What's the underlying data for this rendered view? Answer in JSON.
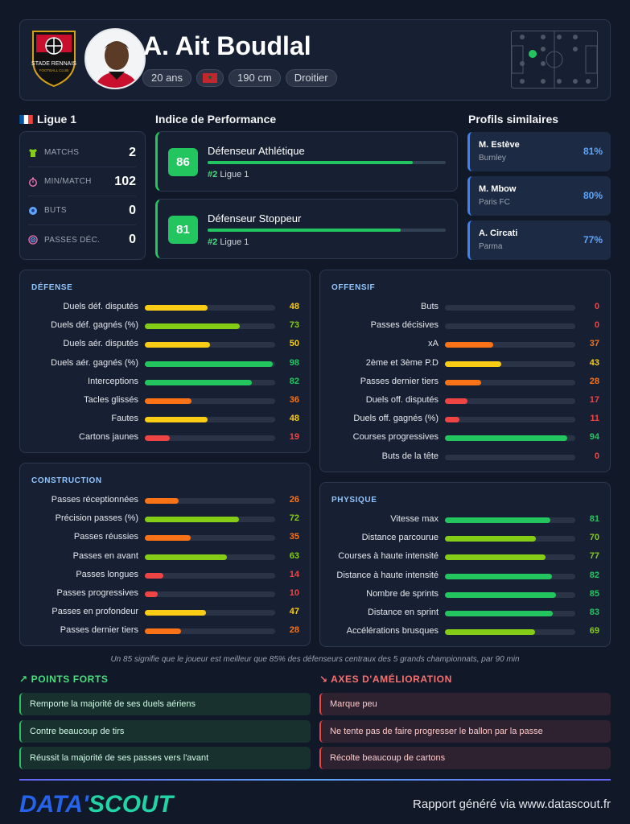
{
  "header": {
    "player_name": "A. Ait Boudlal",
    "logo_text": "STADE RENNAIS",
    "logo_subtext": "FOOTBALL CLUB",
    "chips": {
      "age": "20 ans",
      "height": "190 cm",
      "foot": "Droitier"
    },
    "nationality_flag": "Morocco flag"
  },
  "league": {
    "flag": "France flag",
    "name": "Ligue 1"
  },
  "stats": [
    {
      "icon": "shirt-icon",
      "label": "MATCHS",
      "value": "2"
    },
    {
      "icon": "stopwatch-icon",
      "label": "MIN/MATCH",
      "value": "102"
    },
    {
      "icon": "ball-icon",
      "label": "BUTS",
      "value": "0"
    },
    {
      "icon": "target-icon",
      "label": "PASSES DÉC.",
      "value": "0"
    }
  ],
  "performance": {
    "title": "Indice de Performance",
    "cards": [
      {
        "score": "86",
        "name": "Défenseur Athlétique",
        "rank": "#2",
        "league": "Ligue 1",
        "level": 86
      },
      {
        "score": "81",
        "name": "Défenseur Stoppeur",
        "rank": "#2",
        "league": "Ligue 1",
        "level": 81
      }
    ]
  },
  "similar": {
    "title": "Profils similaires",
    "items": [
      {
        "name": "M. Estève",
        "club": "Burnley",
        "pct": "81%"
      },
      {
        "name": "M. Mbow",
        "club": "Paris FC",
        "pct": "80%"
      },
      {
        "name": "A. Circati",
        "club": "Parma",
        "pct": "77%"
      }
    ]
  },
  "colors": {
    "red": "#ef4444",
    "orange": "#f97316",
    "yellow": "#facc15",
    "lime": "#84cc16",
    "green": "#22c55e"
  },
  "sections": {
    "defense": {
      "title": "DÉFENSE",
      "metrics": [
        {
          "label": "Duels déf. disputés",
          "value": 48
        },
        {
          "label": "Duels déf. gagnés (%)",
          "value": 73
        },
        {
          "label": "Duels aér. disputés",
          "value": 50
        },
        {
          "label": "Duels aér. gagnés (%)",
          "value": 98
        },
        {
          "label": "Interceptions",
          "value": 82
        },
        {
          "label": "Tacles glissés",
          "value": 36
        },
        {
          "label": "Fautes",
          "value": 48
        },
        {
          "label": "Cartons jaunes",
          "value": 19
        }
      ]
    },
    "offensive": {
      "title": "OFFENSIF",
      "metrics": [
        {
          "label": "Buts",
          "value": 0
        },
        {
          "label": "Passes décisives",
          "value": 0
        },
        {
          "label": "xA",
          "value": 37
        },
        {
          "label": "2ème et 3ème P.D",
          "value": 43
        },
        {
          "label": "Passes dernier tiers",
          "value": 28
        },
        {
          "label": "Duels off. disputés",
          "value": 17
        },
        {
          "label": "Duels off. gagnés (%)",
          "value": 11
        },
        {
          "label": "Courses progressives",
          "value": 94
        },
        {
          "label": "Buts de la tête",
          "value": 0
        }
      ]
    },
    "construction": {
      "title": "CONSTRUCTION",
      "metrics": [
        {
          "label": "Passes réceptionnées",
          "value": 26
        },
        {
          "label": "Précision passes (%)",
          "value": 72
        },
        {
          "label": "Passes réussies",
          "value": 35
        },
        {
          "label": "Passes en avant",
          "value": 63
        },
        {
          "label": "Passes longues",
          "value": 14
        },
        {
          "label": "Passes progressives",
          "value": 10
        },
        {
          "label": "Passes en profondeur",
          "value": 47
        },
        {
          "label": "Passes dernier tiers",
          "value": 28
        }
      ]
    },
    "physique": {
      "title": "PHYSIQUE",
      "metrics": [
        {
          "label": "Vitesse max",
          "value": 81
        },
        {
          "label": "Distance parcourue",
          "value": 70
        },
        {
          "label": "Courses à haute intensité",
          "value": 77
        },
        {
          "label": "Distance à haute intensité",
          "value": 82
        },
        {
          "label": "Nombre de sprints",
          "value": 85
        },
        {
          "label": "Distance en sprint",
          "value": 83
        },
        {
          "label": "Accélérations brusques",
          "value": 69
        }
      ]
    }
  },
  "footnote": "Un 85 signifie que le joueur est meilleur que 85% des défenseurs centraux des 5 grands championnats, par 90 min",
  "strengths": {
    "title": "POINTS FORTS",
    "items": [
      "Remporte la majorité de ses duels aériens",
      "Contre beaucoup de tirs",
      "Réussit la majorité de ses passes vers l'avant"
    ]
  },
  "weaknesses": {
    "title": "AXES D'AMÉLIORATION",
    "items": [
      "Marque peu",
      "Ne tente pas de faire progresser le ballon par la passe",
      "Récolte beaucoup de cartons"
    ]
  },
  "footer": {
    "brand_a": "DATA'",
    "brand_b": "SCOUT",
    "report": "Rapport généré via www.datascout.fr"
  }
}
